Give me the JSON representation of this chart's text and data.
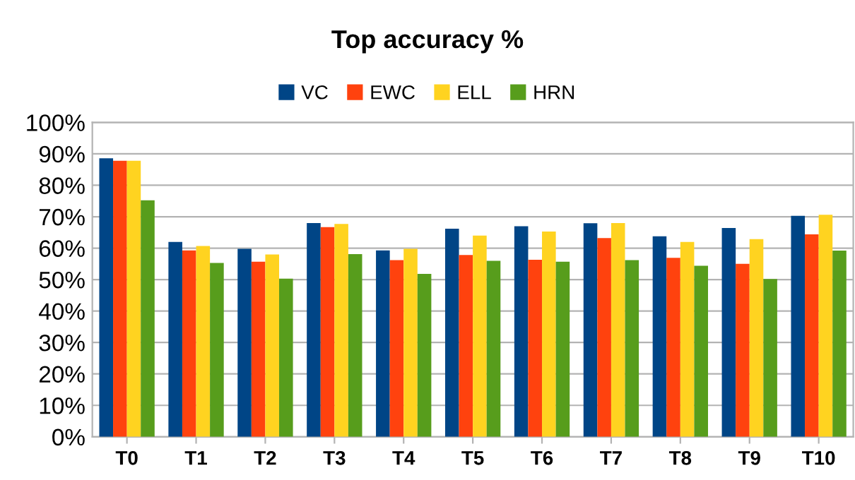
{
  "chart_data": {
    "type": "bar",
    "title": "Top accuracy %",
    "categories": [
      "T0",
      "T1",
      "T2",
      "T3",
      "T4",
      "T5",
      "T6",
      "T7",
      "T8",
      "T9",
      "T10"
    ],
    "series": [
      {
        "name": "VC",
        "color": "#004586",
        "values": [
          88.6,
          62.0,
          59.8,
          68.0,
          59.3,
          66.2,
          67.0,
          67.9,
          63.8,
          66.4,
          70.3
        ]
      },
      {
        "name": "EWC",
        "color": "#ff420e",
        "values": [
          87.8,
          59.3,
          55.7,
          66.7,
          56.2,
          57.8,
          56.3,
          63.2,
          56.9,
          55.0,
          64.4
        ]
      },
      {
        "name": "ELL",
        "color": "#ffd320",
        "values": [
          87.8,
          60.7,
          58.0,
          67.7,
          59.8,
          64.0,
          65.3,
          68.0,
          62.0,
          62.9,
          70.6
        ]
      },
      {
        "name": "HRN",
        "color": "#579d1c",
        "values": [
          75.2,
          55.3,
          50.3,
          58.1,
          51.8,
          56.0,
          55.7,
          56.2,
          54.4,
          50.2,
          59.2
        ]
      }
    ],
    "ylim": [
      0,
      100
    ],
    "yticks": [
      {
        "value": 0,
        "label": "0%"
      },
      {
        "value": 10,
        "label": "10%"
      },
      {
        "value": 20,
        "label": "20%"
      },
      {
        "value": 30,
        "label": "30%"
      },
      {
        "value": 40,
        "label": "40%"
      },
      {
        "value": 50,
        "label": "50%"
      },
      {
        "value": 60,
        "label": "60%"
      },
      {
        "value": 70,
        "label": "70%"
      },
      {
        "value": 80,
        "label": "80%"
      },
      {
        "value": 90,
        "label": "90%"
      },
      {
        "value": 100,
        "label": "100%"
      }
    ],
    "grid": "y",
    "legend": "top"
  }
}
